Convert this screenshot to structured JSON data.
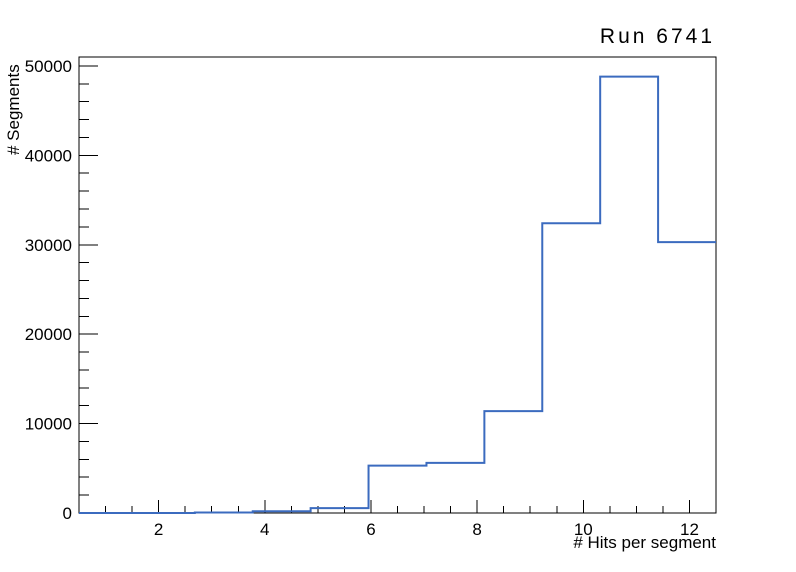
{
  "title": {
    "text": "Run 6741"
  },
  "chart_data": {
    "type": "bar",
    "subtype": "histogram-step-outline",
    "title": "Run 6741",
    "xlabel": "# Hits per segment",
    "ylabel": "# Segments",
    "xlim": [
      0.5,
      12.5
    ],
    "ylim": [
      0,
      51000
    ],
    "n_bins": 11,
    "bin_edges": [
      0.5,
      1.5909,
      2.6818,
      3.7727,
      4.8636,
      5.9545,
      7.0455,
      8.1364,
      9.2273,
      10.3182,
      11.4091,
      12.5
    ],
    "counts": [
      0,
      0,
      50,
      200,
      550,
      5300,
      5600,
      11400,
      32400,
      48800,
      30300
    ],
    "x_major_ticks": [
      2,
      4,
      6,
      8,
      10,
      12
    ],
    "x_minor_tick_step": 0.5,
    "y_major_ticks": [
      0,
      10000,
      20000,
      30000,
      40000,
      50000
    ],
    "y_minor_tick_step": 2000,
    "grid": false,
    "legend": null,
    "line_color": "#3B6BBF",
    "frame_color": "#000000",
    "background_color": "#ffffff"
  }
}
